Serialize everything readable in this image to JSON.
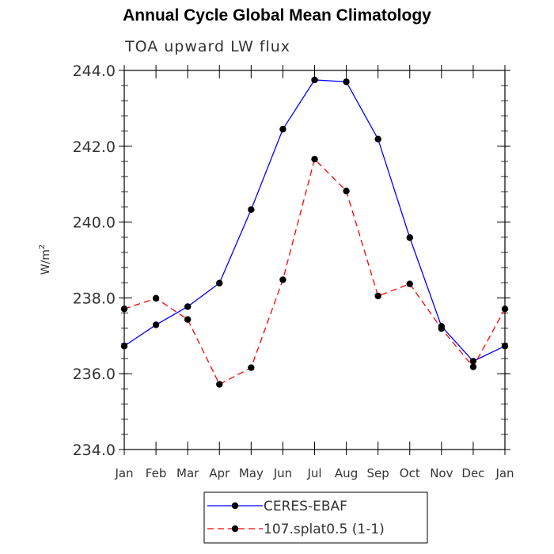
{
  "chart_data": {
    "type": "line",
    "title": "Annual Cycle Global Mean Climatology",
    "subtitle": "TOA upward LW flux",
    "ylabel_base": "W/m",
    "ylabel_sup": "2",
    "categories": [
      "Jan",
      "Feb",
      "Mar",
      "Apr",
      "May",
      "Jun",
      "Jul",
      "Aug",
      "Sep",
      "Oct",
      "Nov",
      "Dec",
      "Jan"
    ],
    "ylim": [
      234.0,
      244.0
    ],
    "yticks": [
      234.0,
      236.0,
      238.0,
      240.0,
      242.0,
      244.0
    ],
    "ytick_labels": [
      "234.0",
      "236.0",
      "238.0",
      "240.0",
      "242.0",
      "244.0"
    ],
    "series": [
      {
        "name": "CERES-EBAF",
        "color": "#0000ff",
        "dash": "solid",
        "values": [
          236.73,
          237.29,
          237.77,
          238.39,
          240.33,
          242.45,
          243.75,
          243.7,
          242.19,
          239.59,
          237.25,
          236.33,
          236.73
        ]
      },
      {
        "name": "107.splat0.5 (1-1)",
        "color": "#ff0000",
        "dash": "dashed",
        "values": [
          237.71,
          237.99,
          237.43,
          235.72,
          236.16,
          238.48,
          241.66,
          240.82,
          238.05,
          238.37,
          237.19,
          236.18,
          237.71
        ]
      }
    ],
    "legend_placement": "bottom-center"
  }
}
